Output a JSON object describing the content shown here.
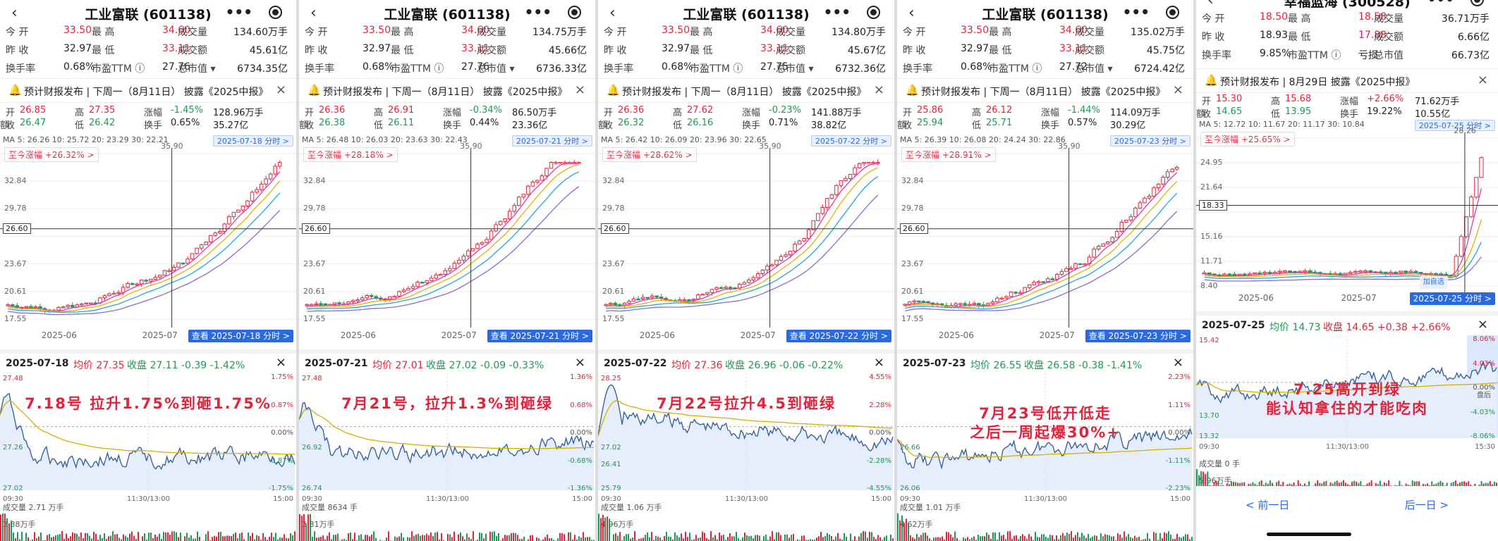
{
  "panels": [
    {
      "title": "工业富联 (601138)",
      "quote": [
        [
          "今 开",
          "33.50",
          "最 高",
          "34.60",
          "成交量",
          "134.60万手"
        ],
        [
          "昨 收",
          "32.97",
          "最 低",
          "33.11",
          "成交额",
          "45.61亿"
        ],
        [
          "换手率",
          "0.68%",
          "市盈TTM ⓘ",
          "27.76",
          "总市值 ▾",
          "6734.35亿"
        ]
      ],
      "notice": "预计财报发布 | 下周一（8月11日） 披露《2025中报》",
      "day": {
        "open": "26.85",
        "high": "27.35",
        "chg": "-1.45%",
        "vol": "128.96万手",
        "close": "26.47",
        "low": "26.42",
        "turn": "0.65%",
        "amt": "35.27亿"
      },
      "ma": "MA  5: 26.26   10: 25.72   20: 23.29   30: 22.21",
      "date_tag": "2025-07-18 分时 >",
      "since": "至今涨幅 +26.32% >",
      "prices": [
        "35.90",
        "32.84",
        "29.78",
        "26.60",
        "23.67",
        "20.61",
        "17.55"
      ],
      "xlabels": [
        "2025-06",
        "2025-07"
      ],
      "view": "查看 2025-07-18 分时 >",
      "ih": {
        "date": "2025-07-18",
        "avg": "均价 27.35",
        "close": "收盘 27.11 -0.39 -1.42%"
      },
      "il_left": [
        "27.48",
        "",
        "27.26",
        "27.02"
      ],
      "il_right": [
        "1.75%",
        "0.87%",
        "0.00%",
        "-0.87%",
        "-1.75%"
      ],
      "it": [
        "09:30",
        "11:30/13:00",
        "15:00"
      ],
      "anno": [
        "7.18号 拉升1.75%到砸1.75%"
      ],
      "vol": "成交量 2.71 万手",
      "vmax": "3.38万手"
    },
    {
      "title": "工业富联 (601138)",
      "quote": [
        [
          "今 开",
          "33.50",
          "最 高",
          "34.60",
          "成交量",
          "134.75万手"
        ],
        [
          "昨 收",
          "32.97",
          "最 低",
          "33.11",
          "成交额",
          "45.66亿"
        ],
        [
          "换手率",
          "0.68%",
          "市盈TTM ⓘ",
          "27.76",
          "总市值 ▾",
          "6736.33亿"
        ]
      ],
      "notice": "预计财报发布 | 下周一（8月11日） 披露《2025中报》",
      "day": {
        "open": "26.36",
        "high": "26.91",
        "chg": "-0.34%",
        "vol": "86.50万手",
        "close": "26.38",
        "low": "26.11",
        "turn": "0.44%",
        "amt": "23.36亿"
      },
      "ma": "MA  5: 26.48   10: 26.03   20: 23.63   30: 22.43",
      "date_tag": "2025-07-21 分时 >",
      "since": "至今涨幅 +28.18% >",
      "prices": [
        "35.90",
        "32.84",
        "29.78",
        "26.60",
        "23.67",
        "20.61",
        "17.55"
      ],
      "xlabels": [
        "2025-06",
        "2025-07"
      ],
      "view": "查看 2025-07-21 分时 >",
      "ih": {
        "date": "2025-07-21",
        "avg": "均价 27.01",
        "close": "收盘 27.02 -0.09 -0.33%"
      },
      "il_left": [
        "27.48",
        "",
        "26.92",
        "26.74"
      ],
      "il_right": [
        "1.36%",
        "0.68%",
        "0.00%",
        "-0.68%",
        "-1.36%"
      ],
      "it": [
        "09:30",
        "11:30/13:00",
        "15:00"
      ],
      "anno": [
        "7月21号，拉升1.3%到砸绿"
      ],
      "vol": "成交量 8634 手",
      "vmax": "3.31万手"
    },
    {
      "title": "工业富联 (601138)",
      "quote": [
        [
          "今 开",
          "33.50",
          "最 高",
          "34.60",
          "成交量",
          "134.80万手"
        ],
        [
          "昨 收",
          "32.97",
          "最 低",
          "33.11",
          "成交额",
          "45.67亿"
        ],
        [
          "换手率",
          "0.68%",
          "市盈TTM ⓘ",
          "27.75",
          "总市值 ▾",
          "6732.36亿"
        ]
      ],
      "notice": "预计财报发布 | 下周一（8月11日） 披露《2025中报》",
      "day": {
        "open": "26.36",
        "high": "27.62",
        "chg": "-0.23%",
        "vol": "141.88万手",
        "close": "26.32",
        "low": "26.16",
        "turn": "0.71%",
        "amt": "38.82亿"
      },
      "ma": "MA  5: 26.42   10: 26.09   20: 23.96   30: 22.65",
      "date_tag": "2025-07-22 分时 >",
      "since": "至今涨幅 +28.62% >",
      "prices": [
        "35.90",
        "32.84",
        "29.78",
        "26.60",
        "23.67",
        "20.61",
        "17.55"
      ],
      "xlabels": [
        "2025-06",
        "2025-07"
      ],
      "view": "查看 2025-07-22 分时 >",
      "ih": {
        "date": "2025-07-22",
        "avg": "均价 27.36",
        "close": "收盘 26.96 -0.06 -0.22%"
      },
      "il_left": [
        "28.25",
        "",
        "27.02",
        "26.41",
        "25.79"
      ],
      "il_right": [
        "4.55%",
        "2.28%",
        "0.00%",
        "-2.28%",
        "-4.55%"
      ],
      "it": [
        "09:30",
        "11:30/13:00",
        "15:00"
      ],
      "anno": [
        "7月22号拉升4.5到砸绿"
      ],
      "vol": "成交量 1.06 万手",
      "vmax": "4.96万手"
    },
    {
      "title": "工业富联 (601138)",
      "quote": [
        [
          "今 开",
          "33.50",
          "最 高",
          "34.60",
          "成交量",
          "135.02万手"
        ],
        [
          "昨 收",
          "32.97",
          "最 低",
          "33.11",
          "成交额",
          "45.75亿"
        ],
        [
          "换手率",
          "0.68%",
          "市盈TTM ⓘ",
          "27.72",
          "总市值 ▾",
          "6724.42亿"
        ]
      ],
      "notice": "预计财报发布 | 下周一（8月11日） 披露《2025中报》",
      "day": {
        "open": "25.86",
        "high": "26.12",
        "chg": "-1.44%",
        "vol": "114.09万手",
        "close": "25.94",
        "low": "25.71",
        "turn": "0.57%",
        "amt": "30.29亿"
      },
      "ma": "MA  5: 26.39   10: 26.08   20: 24.24   30: 22.86",
      "date_tag": "2025-07-23 分时 >",
      "since": "至今涨幅 +28.91% >",
      "prices": [
        "35.90",
        "32.84",
        "29.78",
        "26.60",
        "23.67",
        "20.61",
        "17.55"
      ],
      "xlabels": [
        "2025-06",
        "2025-07"
      ],
      "view": "查看 2025-07-23 分时 >",
      "ih": {
        "date": "2025-07-23",
        "avg": "均价 26.55",
        "close": "收盘 26.58 -0.38 -1.41%"
      },
      "il_left": [
        "",
        "",
        "26.66",
        "26.06"
      ],
      "il_right": [
        "2.23%",
        "1.11%",
        "0.00%",
        "-1.11%",
        "-2.23%"
      ],
      "it": [
        "09:30",
        "11:30/13:00",
        "15:00"
      ],
      "anno": [
        "7月23号低开低走",
        "之后一周起爆30%+"
      ],
      "vol": "成交量 1.01 万手",
      "vmax": "4.62万手"
    },
    {
      "title": "幸福蓝海 (300528)",
      "quote": [
        [
          "今 开",
          "18.50",
          "最 高",
          "18.58",
          "成交量",
          "36.71万手"
        ],
        [
          "昨 收",
          "18.93",
          "最 低",
          "17.88",
          "成交额",
          "6.66亿"
        ],
        [
          "换手率",
          "9.85%",
          "市盈TTM ⓘ",
          "亏损",
          "总市值",
          "66.73亿"
        ]
      ],
      "notice": "预计财报发布 | 8月29日 披露《2025中报》",
      "day": {
        "open": "15.30",
        "high": "15.68",
        "chg": "+2.66%",
        "vol": "71.62万手",
        "close": "14.65",
        "low": "13.95",
        "turn": "19.22%",
        "amt": "10.55亿"
      },
      "ma": "MA  5: 12.72   10: 11.67   20: 11.17   30: 10.84",
      "date_tag": "2025-07-25 分时 >",
      "since": "至今涨幅 +25.65% >",
      "prices": [
        "28.26",
        "24.95",
        "21.64",
        "18.33",
        "15.16",
        "11.71",
        "8.40"
      ],
      "xlabels": [
        "2025-06",
        "2025-07"
      ],
      "view": "2025-07-25 分时 >",
      "ih": {
        "date": "2025-07-25",
        "avg": "均价 14.73",
        "close": "收盘 14.65 +0.38 +2.66%"
      },
      "il_left": [
        "15.42",
        "",
        "",
        "13.70",
        "13.32"
      ],
      "il_right": [
        "8.06%",
        "4.03%",
        "0.00%",
        "-4.03%",
        "-8.06%"
      ],
      "it": [
        "09:30",
        "11:30/13:00",
        "15:30"
      ],
      "anno": [
        "7.25高开到绿",
        "能认知拿住的才能吃肉"
      ],
      "vol": "成交量 0 手",
      "vmax": "5.96万手",
      "nav": {
        "prev": "< 前一日",
        "next": "后一日 >"
      },
      "jia": "加自选",
      "dieting": "盘后"
    }
  ]
}
